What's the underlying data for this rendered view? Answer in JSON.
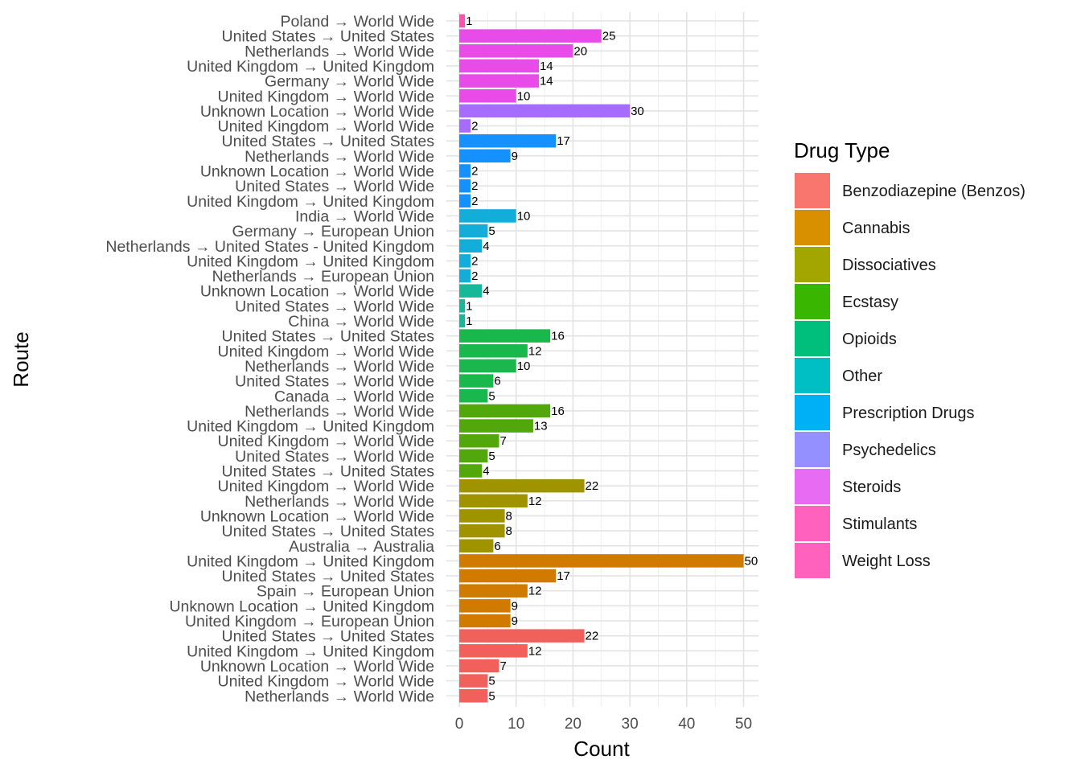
{
  "chart_data": {
    "type": "bar",
    "orientation": "horizontal",
    "xlabel": "Count",
    "ylabel": "Route",
    "xlim": [
      0,
      52
    ],
    "x_ticks": [
      0,
      10,
      20,
      30,
      40,
      50
    ],
    "grid": true,
    "legend": {
      "title": "Drug Type",
      "position": "right",
      "items": [
        {
          "name": "Benzodiazepine (Benzos)",
          "color": "#F8766D"
        },
        {
          "name": "Cannabis",
          "color": "#D89000"
        },
        {
          "name": "Dissociatives",
          "color": "#A3A500"
        },
        {
          "name": "Ecstasy",
          "color": "#39B600"
        },
        {
          "name": "Opioids",
          "color": "#00BF7D"
        },
        {
          "name": "Other",
          "color": "#00BFC4"
        },
        {
          "name": "Prescription Drugs",
          "color": "#00B0F6"
        },
        {
          "name": "Psychedelics",
          "color": "#9590FF"
        },
        {
          "name": "Steroids",
          "color": "#E76BF3"
        },
        {
          "name": "Stimulants",
          "color": "#FF62BC"
        },
        {
          "name": "Weight Loss",
          "color": "#FF62BC"
        }
      ]
    },
    "bars": [
      {
        "route": "Poland → World Wide",
        "value": 1,
        "type": "Weight Loss",
        "color": "#FF4FB0"
      },
      {
        "route": "United States → United States",
        "value": 25,
        "type": "Stimulants",
        "color": "#E84BE8"
      },
      {
        "route": "Netherlands → World Wide",
        "value": 20,
        "type": "Stimulants",
        "color": "#E84BE8"
      },
      {
        "route": "United Kingdom → United Kingdom",
        "value": 14,
        "type": "Stimulants",
        "color": "#E84BE8"
      },
      {
        "route": "Germany → World Wide",
        "value": 14,
        "type": "Stimulants",
        "color": "#E84BE8"
      },
      {
        "route": "United Kingdom → World Wide",
        "value": 10,
        "type": "Stimulants",
        "color": "#E84BE8"
      },
      {
        "route": "Unknown Location → World Wide",
        "value": 30,
        "type": "Steroids",
        "color": "#A66CFF"
      },
      {
        "route": "United Kingdom → World Wide",
        "value": 2,
        "type": "Steroids",
        "color": "#A66CFF"
      },
      {
        "route": "United States → United States",
        "value": 17,
        "type": "Psychedelics",
        "color": "#1591FF"
      },
      {
        "route": "Netherlands → World Wide",
        "value": 9,
        "type": "Psychedelics",
        "color": "#1591FF"
      },
      {
        "route": "Unknown Location → World Wide",
        "value": 2,
        "type": "Psychedelics",
        "color": "#1591FF"
      },
      {
        "route": "United States → World Wide",
        "value": 2,
        "type": "Psychedelics",
        "color": "#1591FF"
      },
      {
        "route": "United Kingdom → United Kingdom",
        "value": 2,
        "type": "Psychedelics",
        "color": "#1591FF"
      },
      {
        "route": "India → World Wide",
        "value": 10,
        "type": "Prescription Drugs",
        "color": "#12ADD8"
      },
      {
        "route": "Germany → European Union",
        "value": 5,
        "type": "Prescription Drugs",
        "color": "#12ADD8"
      },
      {
        "route": "Netherlands → United States - United Kingdom",
        "value": 4,
        "type": "Prescription Drugs",
        "color": "#12ADD8"
      },
      {
        "route": "United Kingdom → United Kingdom",
        "value": 2,
        "type": "Prescription Drugs",
        "color": "#12ADD8"
      },
      {
        "route": "Netherlands → European Union",
        "value": 2,
        "type": "Prescription Drugs",
        "color": "#12ADD8"
      },
      {
        "route": "Unknown Location → World Wide",
        "value": 4,
        "type": "Other",
        "color": "#17B79A"
      },
      {
        "route": "United States → World Wide",
        "value": 1,
        "type": "Other",
        "color": "#17B79A"
      },
      {
        "route": "China → World Wide",
        "value": 1,
        "type": "Other",
        "color": "#17B79A"
      },
      {
        "route": "United States → United States",
        "value": 16,
        "type": "Opioids",
        "color": "#19B84D"
      },
      {
        "route": "United Kingdom → World Wide",
        "value": 12,
        "type": "Opioids",
        "color": "#19B84D"
      },
      {
        "route": "Netherlands → World Wide",
        "value": 10,
        "type": "Opioids",
        "color": "#19B84D"
      },
      {
        "route": "United States → World Wide",
        "value": 6,
        "type": "Opioids",
        "color": "#19B84D"
      },
      {
        "route": "Canada → World Wide",
        "value": 5,
        "type": "Opioids",
        "color": "#19B84D"
      },
      {
        "route": "Netherlands → World Wide",
        "value": 16,
        "type": "Ecstasy",
        "color": "#52A70A"
      },
      {
        "route": "United Kingdom → United Kingdom",
        "value": 13,
        "type": "Ecstasy",
        "color": "#52A70A"
      },
      {
        "route": "United Kingdom → World Wide",
        "value": 7,
        "type": "Ecstasy",
        "color": "#52A70A"
      },
      {
        "route": "United States → World Wide",
        "value": 5,
        "type": "Ecstasy",
        "color": "#52A70A"
      },
      {
        "route": "United States → United States",
        "value": 4,
        "type": "Ecstasy",
        "color": "#52A70A"
      },
      {
        "route": "United Kingdom → World Wide",
        "value": 22,
        "type": "Dissociatives",
        "color": "#A09300"
      },
      {
        "route": "Netherlands → World Wide",
        "value": 12,
        "type": "Dissociatives",
        "color": "#A09300"
      },
      {
        "route": "Unknown Location → World Wide",
        "value": 8,
        "type": "Dissociatives",
        "color": "#A09300"
      },
      {
        "route": "United States → United States",
        "value": 8,
        "type": "Dissociatives",
        "color": "#A09300"
      },
      {
        "route": "Australia → Australia",
        "value": 6,
        "type": "Dissociatives",
        "color": "#A09300"
      },
      {
        "route": "United Kingdom → United Kingdom",
        "value": 50,
        "type": "Cannabis",
        "color": "#D07A00"
      },
      {
        "route": "United States → United States",
        "value": 17,
        "type": "Cannabis",
        "color": "#D07A00"
      },
      {
        "route": "Spain → European Union",
        "value": 12,
        "type": "Cannabis",
        "color": "#D07A00"
      },
      {
        "route": "Unknown Location → United Kingdom",
        "value": 9,
        "type": "Cannabis",
        "color": "#D07A00"
      },
      {
        "route": "United Kingdom → European Union",
        "value": 9,
        "type": "Cannabis",
        "color": "#D07A00"
      },
      {
        "route": "United States → United States",
        "value": 22,
        "type": "Benzodiazepine (Benzos)",
        "color": "#F2605B"
      },
      {
        "route": "United Kingdom → United Kingdom",
        "value": 12,
        "type": "Benzodiazepine (Benzos)",
        "color": "#F2605B"
      },
      {
        "route": "Unknown Location → World Wide",
        "value": 7,
        "type": "Benzodiazepine (Benzos)",
        "color": "#F2605B"
      },
      {
        "route": "United Kingdom → World Wide",
        "value": 5,
        "type": "Benzodiazepine (Benzos)",
        "color": "#F2605B"
      },
      {
        "route": "Netherlands → World Wide",
        "value": 5,
        "type": "Benzodiazepine (Benzos)",
        "color": "#F2605B"
      }
    ]
  }
}
